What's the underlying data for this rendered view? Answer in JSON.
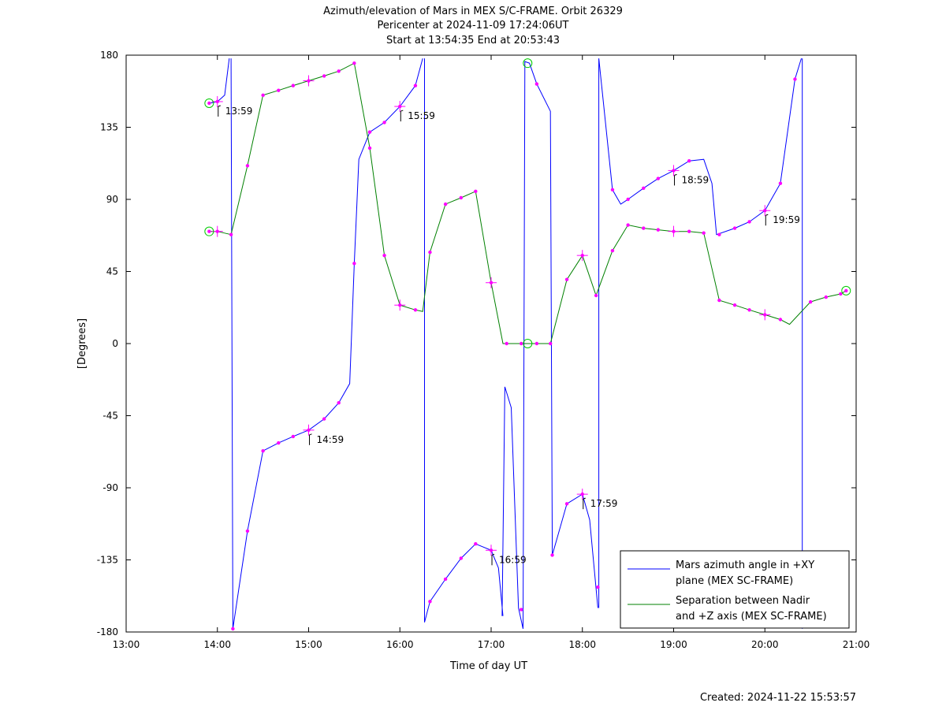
{
  "title": {
    "line1": "Azimuth/elevation of Mars in MEX S/C-FRAME.  Orbit 26329",
    "line2": "Pericenter at 2024-11-09 17:24:06UT",
    "line3": "Start at 13:54:35 End at 20:53:43"
  },
  "created": "Created: 2024-11-22 15:53:57",
  "chart_data": {
    "type": "line",
    "xlabel": "Time of day UT",
    "ylabel": "[Degrees]",
    "xlim": [
      13.0,
      21.0
    ],
    "ylim": [
      -180,
      180
    ],
    "x_ticks": [
      13,
      14,
      15,
      16,
      17,
      18,
      19,
      20,
      21
    ],
    "x_tick_labels": [
      "13:00",
      "14:00",
      "15:00",
      "16:00",
      "17:00",
      "18:00",
      "19:00",
      "20:00",
      "21:00"
    ],
    "y_ticks": [
      180,
      135,
      90,
      45,
      0,
      -45,
      -90,
      -135,
      -180
    ],
    "y_tick_labels": [
      "180",
      "135",
      "90",
      "45",
      "0",
      "-45",
      "-90",
      "-135",
      "-180"
    ],
    "grid": false,
    "legend_position": "bottom-right",
    "series": [
      {
        "name": "Mars azimuth angle in +XY plane (MEX SC-FRAME)",
        "legend_lines": [
          "Mars azimuth angle in +XY",
          "plane (MEX SC-FRAME)"
        ],
        "color": "#0000ff",
        "segments": [
          [
            [
              13.91,
              150
            ],
            [
              14.0,
              151
            ],
            [
              14.08,
              155
            ],
            [
              14.13,
              178
            ]
          ],
          [
            [
              14.15,
              178
            ],
            [
              14.17,
              -178
            ],
            [
              14.33,
              -117
            ],
            [
              14.5,
              -67
            ],
            [
              14.67,
              -62
            ],
            [
              14.83,
              -58
            ],
            [
              15.0,
              -54
            ],
            [
              15.17,
              -47
            ],
            [
              15.33,
              -37
            ],
            [
              15.45,
              -25
            ],
            [
              15.5,
              50
            ],
            [
              15.55,
              115
            ],
            [
              15.67,
              132
            ],
            [
              15.83,
              138
            ],
            [
              16.0,
              148
            ],
            [
              16.17,
              161
            ],
            [
              16.25,
              178
            ]
          ],
          [
            [
              16.27,
              178
            ],
            [
              16.27,
              -174
            ],
            [
              16.33,
              -161
            ],
            [
              16.5,
              -147
            ],
            [
              16.67,
              -134
            ],
            [
              16.83,
              -125
            ],
            [
              17.0,
              -129
            ],
            [
              17.08,
              -140
            ],
            [
              17.13,
              -170
            ]
          ],
          [
            [
              17.12,
              -170
            ],
            [
              17.15,
              -27
            ],
            [
              17.22,
              -40
            ],
            [
              17.3,
              -165
            ],
            [
              17.35,
              -178
            ]
          ],
          [
            [
              17.35,
              -178
            ],
            [
              17.37,
              176
            ],
            [
              17.42,
              175
            ],
            [
              17.5,
              162
            ],
            [
              17.65,
              145
            ],
            [
              17.67,
              -132
            ],
            [
              17.83,
              -100
            ],
            [
              18.0,
              -94
            ],
            [
              18.08,
              -110
            ],
            [
              18.17,
              -165
            ]
          ],
          [
            [
              18.18,
              -165
            ],
            [
              18.18,
              178
            ],
            [
              18.33,
              96
            ],
            [
              18.42,
              87
            ],
            [
              18.5,
              90
            ],
            [
              18.67,
              97
            ],
            [
              18.83,
              103
            ],
            [
              19.0,
              108
            ],
            [
              19.17,
              114
            ],
            [
              19.33,
              115
            ],
            [
              19.42,
              100
            ],
            [
              19.47,
              68
            ],
            [
              19.67,
              72
            ],
            [
              19.83,
              76
            ],
            [
              20.0,
              83
            ],
            [
              20.17,
              100
            ],
            [
              20.33,
              165
            ],
            [
              20.4,
              178
            ]
          ],
          [
            [
              20.41,
              178
            ],
            [
              20.41,
              -178
            ],
            [
              20.43,
              -130
            ]
          ]
        ]
      },
      {
        "name": "Separation between Nadir and +Z axis (MEX SC-FRAME)",
        "legend_lines": [
          "Separation between Nadir",
          "and +Z axis (MEX SC-FRAME)"
        ],
        "color": "#008000",
        "segments": [
          [
            [
              13.91,
              70
            ],
            [
              14.0,
              70
            ],
            [
              14.15,
              68
            ],
            [
              14.33,
              111
            ],
            [
              14.5,
              155
            ],
            [
              14.67,
              158
            ],
            [
              14.83,
              161
            ],
            [
              15.0,
              164
            ],
            [
              15.17,
              167
            ],
            [
              15.33,
              170
            ],
            [
              15.5,
              175
            ],
            [
              15.67,
              122
            ],
            [
              15.83,
              55
            ],
            [
              16.0,
              24
            ],
            [
              16.17,
              21
            ],
            [
              16.25,
              20
            ],
            [
              16.33,
              57
            ],
            [
              16.5,
              87
            ],
            [
              16.67,
              91
            ],
            [
              16.83,
              95
            ],
            [
              17.0,
              38
            ],
            [
              17.13,
              0
            ],
            [
              17.3,
              0
            ],
            [
              17.5,
              0
            ],
            [
              17.65,
              0
            ],
            [
              17.83,
              40
            ],
            [
              18.0,
              55
            ],
            [
              18.15,
              30
            ],
            [
              18.33,
              58
            ],
            [
              18.5,
              74
            ],
            [
              18.67,
              72
            ],
            [
              18.83,
              71
            ],
            [
              19.0,
              70
            ],
            [
              19.17,
              70
            ],
            [
              19.33,
              69
            ],
            [
              19.5,
              27
            ],
            [
              19.67,
              24
            ],
            [
              19.83,
              21
            ],
            [
              20.0,
              18
            ],
            [
              20.17,
              15
            ],
            [
              20.27,
              12
            ],
            [
              20.5,
              26
            ],
            [
              20.67,
              29
            ],
            [
              20.83,
              31
            ],
            [
              20.89,
              33
            ]
          ]
        ]
      }
    ],
    "markers": [
      [
        13.91,
        150
      ],
      [
        14.0,
        151
      ],
      [
        14.17,
        -178
      ],
      [
        14.33,
        -117
      ],
      [
        14.5,
        -67
      ],
      [
        14.67,
        -62
      ],
      [
        14.83,
        -58
      ],
      [
        15.0,
        -54
      ],
      [
        15.17,
        -47
      ],
      [
        15.33,
        -37
      ],
      [
        15.5,
        50
      ],
      [
        15.67,
        132
      ],
      [
        15.83,
        138
      ],
      [
        16.0,
        148
      ],
      [
        16.17,
        161
      ],
      [
        16.33,
        -161
      ],
      [
        16.5,
        -147
      ],
      [
        16.67,
        -134
      ],
      [
        16.83,
        -125
      ],
      [
        17.0,
        -129
      ],
      [
        17.33,
        -166
      ],
      [
        17.5,
        162
      ],
      [
        17.67,
        -132
      ],
      [
        17.83,
        -100
      ],
      [
        18.0,
        -94
      ],
      [
        18.17,
        -152
      ],
      [
        18.33,
        96
      ],
      [
        18.5,
        90
      ],
      [
        18.67,
        97
      ],
      [
        18.83,
        103
      ],
      [
        19.0,
        108
      ],
      [
        19.17,
        114
      ],
      [
        19.5,
        68
      ],
      [
        19.67,
        72
      ],
      [
        19.83,
        76
      ],
      [
        20.0,
        83
      ],
      [
        20.17,
        100
      ],
      [
        20.33,
        165
      ],
      [
        13.91,
        70
      ],
      [
        14.0,
        70
      ],
      [
        14.15,
        68
      ],
      [
        14.33,
        111
      ],
      [
        14.5,
        155
      ],
      [
        14.67,
        158
      ],
      [
        14.83,
        161
      ],
      [
        15.0,
        164
      ],
      [
        15.17,
        167
      ],
      [
        15.33,
        170
      ],
      [
        15.5,
        175
      ],
      [
        15.67,
        122
      ],
      [
        15.83,
        55
      ],
      [
        16.0,
        24
      ],
      [
        16.17,
        21
      ],
      [
        16.33,
        57
      ],
      [
        16.5,
        87
      ],
      [
        16.67,
        91
      ],
      [
        16.83,
        95
      ],
      [
        17.0,
        38
      ],
      [
        17.17,
        0
      ],
      [
        17.33,
        0
      ],
      [
        17.5,
        0
      ],
      [
        17.65,
        0
      ],
      [
        17.83,
        40
      ],
      [
        18.0,
        55
      ],
      [
        18.15,
        30
      ],
      [
        18.33,
        58
      ],
      [
        18.5,
        74
      ],
      [
        18.67,
        72
      ],
      [
        18.83,
        71
      ],
      [
        19.0,
        70
      ],
      [
        19.17,
        70
      ],
      [
        19.33,
        69
      ],
      [
        19.5,
        27
      ],
      [
        19.67,
        24
      ],
      [
        19.83,
        21
      ],
      [
        20.0,
        18
      ],
      [
        20.17,
        15
      ],
      [
        20.5,
        26
      ],
      [
        20.67,
        29
      ],
      [
        20.83,
        31
      ],
      [
        20.89,
        33
      ]
    ],
    "hour_markers": [
      [
        14.0,
        151
      ],
      [
        15.0,
        -54
      ],
      [
        16.0,
        148
      ],
      [
        17.0,
        -129
      ],
      [
        18.0,
        -94
      ],
      [
        19.0,
        108
      ],
      [
        20.0,
        83
      ],
      [
        14.0,
        70
      ],
      [
        15.0,
        164
      ],
      [
        16.0,
        24
      ],
      [
        17.0,
        38
      ],
      [
        18.0,
        55
      ],
      [
        19.0,
        70
      ],
      [
        20.0,
        18
      ]
    ],
    "circle_markers": [
      [
        13.91,
        150
      ],
      [
        13.91,
        70
      ],
      [
        17.4,
        175
      ],
      [
        17.4,
        0
      ],
      [
        20.89,
        33
      ]
    ],
    "annotations": [
      {
        "text": "13:59",
        "x": 13.983,
        "y": 151
      },
      {
        "text": "14:59",
        "x": 14.983,
        "y": -54
      },
      {
        "text": "15:59",
        "x": 15.983,
        "y": 148
      },
      {
        "text": "16:59",
        "x": 16.983,
        "y": -129
      },
      {
        "text": "17:59",
        "x": 17.983,
        "y": -94
      },
      {
        "text": "18:59",
        "x": 18.983,
        "y": 108
      },
      {
        "text": "19:59",
        "x": 19.983,
        "y": 83
      }
    ]
  }
}
